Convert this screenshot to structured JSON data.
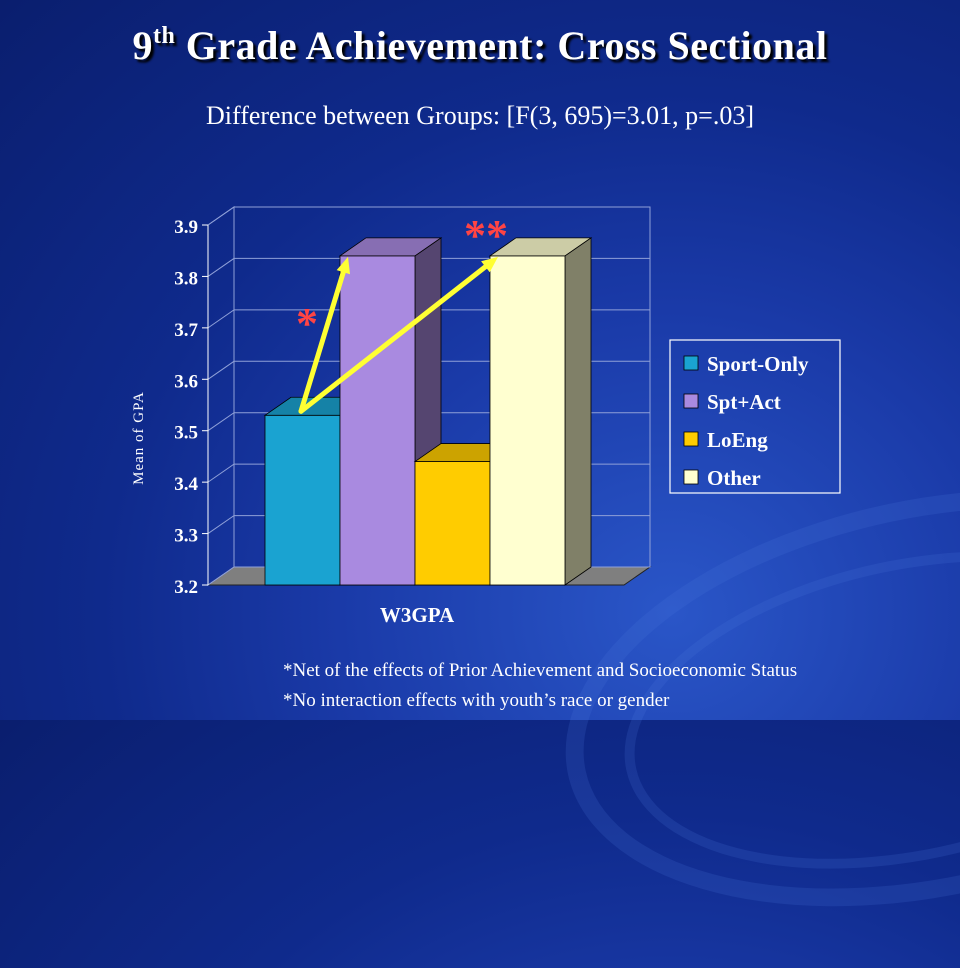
{
  "slide": {
    "title_main": "9",
    "title_sup": "th",
    "title_rest": " Grade Achievement: Cross Sectional",
    "subtitle": "Difference between Groups: [F(3, 695)=3.01, p=.03]",
    "footnotes": [
      "*Net of the effects of Prior Achievement and Socioeconomic Status",
      "*No interaction effects with youth’s race or gender"
    ],
    "background_color": "#1a3aa8"
  },
  "chart_data": {
    "type": "bar",
    "style": "3d-clustered",
    "categories": [
      "W3GPA"
    ],
    "xlabel": "W3GPA",
    "ylabel": "Mean of GPA",
    "ylim": [
      3.2,
      3.9
    ],
    "yticks": [
      "3.2",
      "3.3",
      "3.4",
      "3.5",
      "3.6",
      "3.7",
      "3.8",
      "3.9"
    ],
    "grid": true,
    "legend_position": "right",
    "series": [
      {
        "name": "Sport-Only",
        "values": [
          3.53
        ],
        "color": "#1aa3d1"
      },
      {
        "name": "Spt+Act",
        "values": [
          3.84
        ],
        "color": "#a98ae0"
      },
      {
        "name": "LoEng",
        "values": [
          3.44
        ],
        "color": "#ffcc00"
      },
      {
        "name": "Other",
        "values": [
          3.84
        ],
        "color": "#ffffd0"
      }
    ],
    "annotations": [
      {
        "text": "*",
        "from_series": "Sport-Only",
        "to_series": "Spt+Act",
        "color": "#ff4444",
        "arrow_color": "#ffff33"
      },
      {
        "text": "**",
        "from_series": "Sport-Only",
        "to_series": "Other",
        "color": "#ff4444",
        "arrow_color": "#ffff33"
      }
    ]
  }
}
